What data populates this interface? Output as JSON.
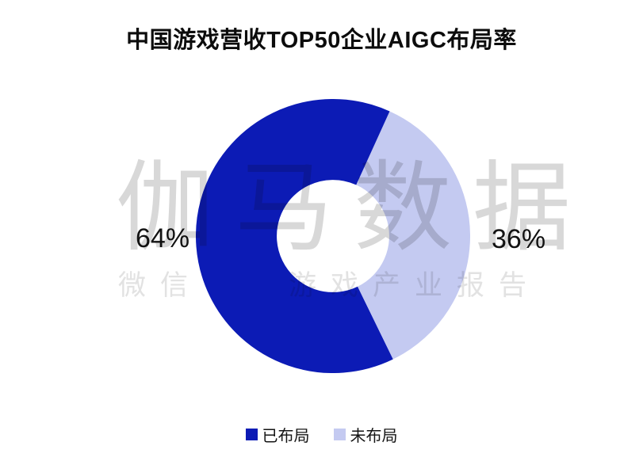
{
  "chart_data": {
    "type": "pie",
    "donut": true,
    "title": "中国游戏营收TOP50企业AIGC布局率",
    "categories": [
      "已布局",
      "未布局"
    ],
    "values": [
      64,
      36
    ],
    "slices": [
      {
        "name": "已布局",
        "value": 64,
        "label": "64%",
        "color": "#0c1bb5"
      },
      {
        "name": "未布局",
        "value": 36,
        "label": "36%",
        "color": "#c4caf1"
      }
    ],
    "inner_radius_ratio": 0.41,
    "start_angle_deg": 154,
    "clockwise": true,
    "legend_position": "bottom",
    "label_position": "outside"
  },
  "watermark": {
    "line1": "伽马数据",
    "line2_left": "微信",
    "line2_right": "游戏产业报告"
  }
}
